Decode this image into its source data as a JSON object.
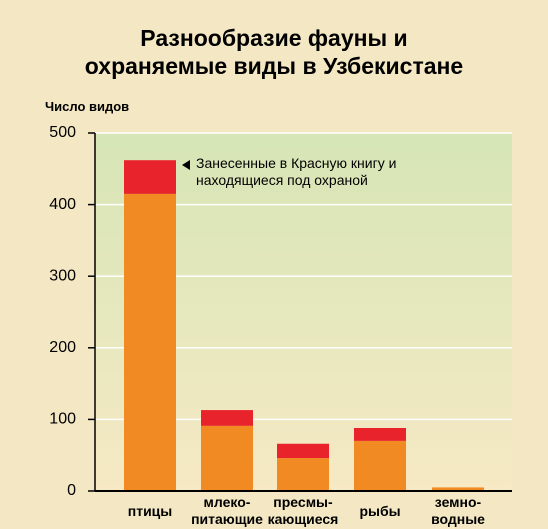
{
  "chart_data": {
    "type": "stacked_bar",
    "title": "Разнообразие фауны и\nохраняемые виды в Узбекистане",
    "ylabel": "Число видов",
    "categories": [
      "птицы",
      "млеко-\nпитающие",
      "пресмы-\nкающиеся",
      "рыбы",
      "земно-\nводные"
    ],
    "series": [
      {
        "color": "#f28a24",
        "values": [
          415,
          91,
          46,
          70,
          5
        ]
      },
      {
        "name": "Занесенные в Красную книгу и\nнаходящиеся под охраной",
        "color": "#e8232b",
        "values": [
          47,
          22,
          20,
          18,
          0
        ]
      }
    ],
    "ylim": [
      0,
      500
    ],
    "yticks": [
      0,
      100,
      200,
      300,
      400,
      500
    ],
    "grid": true
  }
}
